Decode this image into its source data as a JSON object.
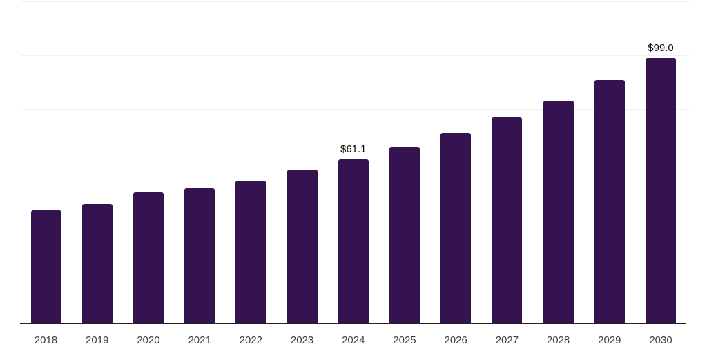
{
  "chart_data": {
    "type": "bar",
    "title": "",
    "xlabel": "",
    "ylabel": "",
    "categories": [
      "2018",
      "2019",
      "2020",
      "2021",
      "2022",
      "2023",
      "2024",
      "2025",
      "2026",
      "2027",
      "2028",
      "2029",
      "2030"
    ],
    "values": [
      42.1,
      44.5,
      48.8,
      50.4,
      53.2,
      57.3,
      61.1,
      65.8,
      70.9,
      76.8,
      83.0,
      90.7,
      99.0
    ],
    "data_labels": [
      null,
      null,
      null,
      null,
      null,
      null,
      "$61.1",
      null,
      null,
      null,
      null,
      null,
      "$99.0"
    ],
    "ylim": [
      0,
      120
    ],
    "gridline_step": 20,
    "grid": true,
    "legend": "none",
    "y_axis_labels_visible": false,
    "colors": {
      "bar": "#351250",
      "gridline": "#f0f0f1",
      "axis_line": "#222222",
      "tick_label": "#404040",
      "data_label": "#0a0a0a",
      "background": "#ffffff"
    }
  }
}
